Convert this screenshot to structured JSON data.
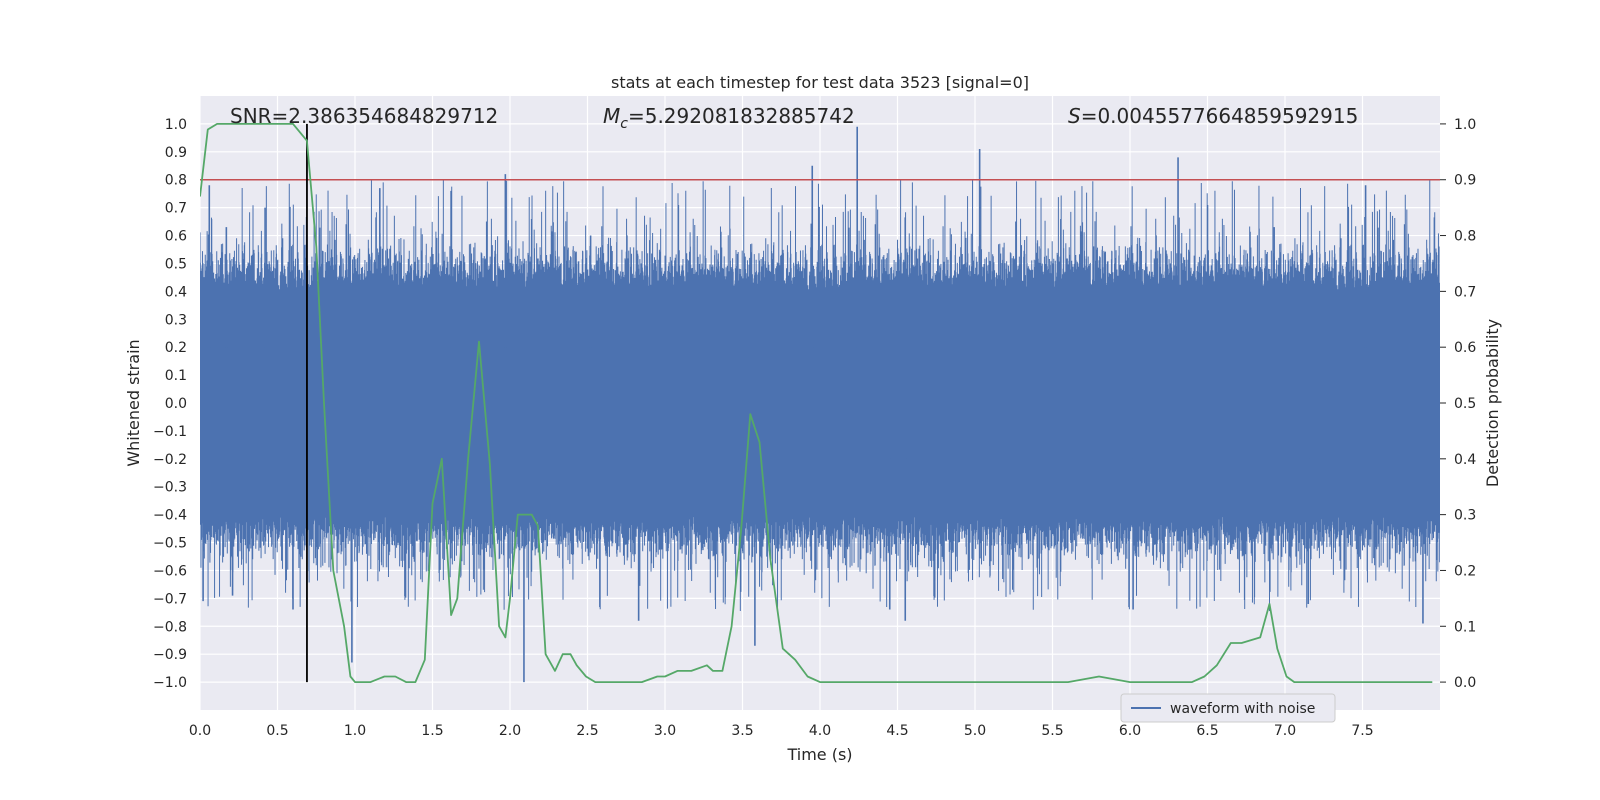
{
  "chart_data": {
    "type": "line",
    "title": "stats at each timestep for test data 3523 [signal=0]",
    "xlabel": "Time (s)",
    "ylabel_left": "Whitened strain",
    "ylabel_right": "Detection probability",
    "xlim": [
      0.0,
      8.0
    ],
    "ylim_left": [
      -1.1,
      1.1
    ],
    "ylim_right": [
      -0.05,
      1.05
    ],
    "x_ticks": [
      "0.0",
      "0.5",
      "1.0",
      "1.5",
      "2.0",
      "2.5",
      "3.0",
      "3.5",
      "4.0",
      "4.5",
      "5.0",
      "5.5",
      "6.0",
      "6.5",
      "7.0",
      "7.5"
    ],
    "x_tick_values": [
      0.0,
      0.5,
      1.0,
      1.5,
      2.0,
      2.5,
      3.0,
      3.5,
      4.0,
      4.5,
      5.0,
      5.5,
      6.0,
      6.5,
      7.0,
      7.5
    ],
    "y_left_ticks": [
      "1.0",
      "0.9",
      "0.8",
      "0.7",
      "0.6",
      "0.5",
      "0.4",
      "0.3",
      "0.2",
      "0.1",
      "0.0",
      "−0.1",
      "−0.2",
      "−0.3",
      "−0.4",
      "−0.5",
      "−0.6",
      "−0.7",
      "−0.8",
      "−0.9",
      "−1.0"
    ],
    "y_left_tick_values": [
      1.0,
      0.9,
      0.8,
      0.7,
      0.6,
      0.5,
      0.4,
      0.3,
      0.2,
      0.1,
      0.0,
      -0.1,
      -0.2,
      -0.3,
      -0.4,
      -0.5,
      -0.6,
      -0.7,
      -0.8,
      -0.9,
      -1.0
    ],
    "y_right_ticks": [
      "1.0",
      "0.9",
      "0.8",
      "0.7",
      "0.6",
      "0.5",
      "0.4",
      "0.3",
      "0.2",
      "0.1",
      "0.0"
    ],
    "y_right_tick_values": [
      1.0,
      0.9,
      0.8,
      0.7,
      0.6,
      0.5,
      0.4,
      0.3,
      0.2,
      0.1,
      0.0
    ],
    "annotations": {
      "snr": "SNR=2.386354684829712",
      "mc_symbol": "M",
      "mc_subscript": "c",
      "mc_value": "=5.292081832885742",
      "s_symbol": "S",
      "s_value": "=0.0045577664859592915"
    },
    "threshold_line": {
      "axis": "right",
      "value": 0.9,
      "color": "#c44e52"
    },
    "vertical_marker": {
      "x": 0.69,
      "y_from": -1.0,
      "y_to": 1.0,
      "color": "#000000"
    },
    "grid": true,
    "legend": {
      "position": "lower-right",
      "entries": [
        {
          "label": "waveform with noise",
          "color": "#4c72b0"
        }
      ]
    },
    "series": [
      {
        "name": "waveform with noise",
        "axis": "left",
        "color": "#4c72b0",
        "style": "dense-noise",
        "typical_envelope": 0.4,
        "spikes": [
          {
            "x": 0.02,
            "y": -0.71
          },
          {
            "x": 0.06,
            "y": 0.78
          },
          {
            "x": 0.17,
            "y": 0.63
          },
          {
            "x": 0.21,
            "y": -0.69
          },
          {
            "x": 0.42,
            "y": 0.7
          },
          {
            "x": 0.6,
            "y": -0.74
          },
          {
            "x": 0.98,
            "y": -0.93
          },
          {
            "x": 1.16,
            "y": 0.77
          },
          {
            "x": 1.62,
            "y": 0.76
          },
          {
            "x": 1.97,
            "y": 0.82
          },
          {
            "x": 2.09,
            "y": -1.0
          },
          {
            "x": 2.52,
            "y": 0.6
          },
          {
            "x": 2.83,
            "y": -0.78
          },
          {
            "x": 3.58,
            "y": -0.87
          },
          {
            "x": 3.95,
            "y": 0.85
          },
          {
            "x": 4.24,
            "y": 0.99
          },
          {
            "x": 4.45,
            "y": -0.74
          },
          {
            "x": 4.55,
            "y": -0.78
          },
          {
            "x": 5.03,
            "y": 0.91
          },
          {
            "x": 6.02,
            "y": -0.74
          },
          {
            "x": 6.31,
            "y": 0.88
          },
          {
            "x": 6.93,
            "y": 0.63
          },
          {
            "x": 7.15,
            "y": -0.72
          },
          {
            "x": 7.52,
            "y": 0.78
          },
          {
            "x": 7.89,
            "y": -0.79
          }
        ]
      },
      {
        "name": "detection probability",
        "axis": "right",
        "color": "#55a868",
        "x": [
          0.0,
          0.05,
          0.11,
          0.2,
          0.3,
          0.4,
          0.5,
          0.6,
          0.69,
          0.75,
          0.8,
          0.86,
          0.93,
          0.97,
          1.0,
          1.1,
          1.19,
          1.26,
          1.33,
          1.39,
          1.45,
          1.5,
          1.56,
          1.62,
          1.66,
          1.73,
          1.8,
          1.87,
          1.93,
          1.97,
          2.0,
          2.05,
          2.1,
          2.14,
          2.18,
          2.23,
          2.29,
          2.34,
          2.39,
          2.43,
          2.49,
          2.55,
          2.65,
          2.75,
          2.85,
          2.95,
          3.0,
          3.08,
          3.17,
          3.27,
          3.31,
          3.37,
          3.43,
          3.49,
          3.55,
          3.61,
          3.68,
          3.76,
          3.84,
          3.92,
          4.0,
          4.2,
          4.4,
          4.6,
          4.8,
          5.0,
          5.2,
          5.26,
          5.4,
          5.6,
          5.8,
          6.0,
          6.2,
          6.4,
          6.48,
          6.56,
          6.65,
          6.72,
          6.84,
          6.9,
          6.95,
          7.01,
          7.06,
          7.12,
          7.2,
          7.5,
          7.8,
          7.95
        ],
        "values": [
          0.87,
          0.99,
          1.0,
          1.0,
          1.0,
          1.0,
          1.0,
          1.0,
          0.97,
          0.78,
          0.5,
          0.2,
          0.1,
          0.01,
          0.0,
          0.0,
          0.01,
          0.01,
          0.0,
          0.0,
          0.04,
          0.32,
          0.4,
          0.12,
          0.15,
          0.4,
          0.61,
          0.39,
          0.1,
          0.08,
          0.15,
          0.3,
          0.3,
          0.3,
          0.28,
          0.05,
          0.02,
          0.05,
          0.05,
          0.03,
          0.01,
          0.0,
          0.0,
          0.0,
          0.0,
          0.01,
          0.01,
          0.02,
          0.02,
          0.03,
          0.02,
          0.02,
          0.1,
          0.27,
          0.48,
          0.43,
          0.22,
          0.06,
          0.04,
          0.01,
          0.0,
          0.0,
          0.0,
          0.0,
          0.0,
          0.0,
          0.0,
          0.0,
          0.0,
          0.0,
          0.01,
          0.0,
          0.0,
          0.0,
          0.01,
          0.03,
          0.07,
          0.07,
          0.08,
          0.14,
          0.06,
          0.01,
          0.0,
          0.0,
          0.0,
          0.0,
          0.0,
          0.0
        ]
      }
    ]
  }
}
